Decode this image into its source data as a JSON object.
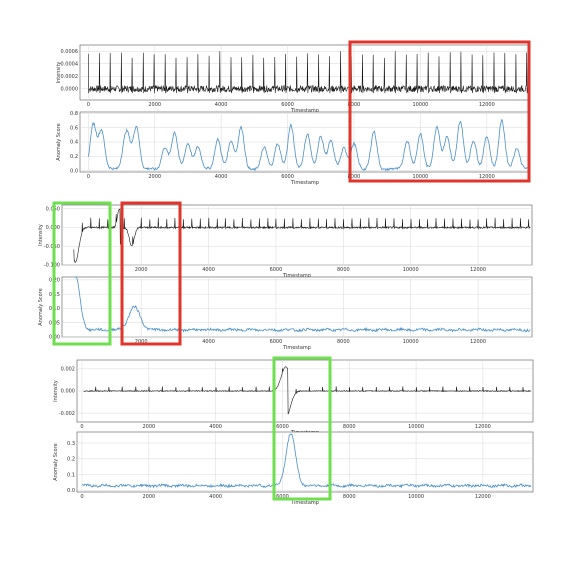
{
  "colors": {
    "signal": "#1a1a1a",
    "score": "#4a90c8",
    "anomaly_box": "#e0352b",
    "detected_box": "#6ee04f",
    "grid": "#d8d8d8"
  },
  "chart_data": [
    {
      "type": "line",
      "panel": "1-signal",
      "xlabel": "Timestamp",
      "ylabel": "Intensity",
      "xlim": [
        -250,
        13300
      ],
      "ylim": [
        -0.00018,
        0.0007
      ],
      "xticks": [
        0,
        2000,
        4000,
        6000,
        8000,
        10000,
        12000
      ],
      "yticks": [
        0.0,
        0.0002,
        0.0004,
        0.0006
      ],
      "ytick_labels": [
        "0.0000",
        "0.0002",
        "0.0004",
        "0.0006"
      ],
      "grid": true,
      "series": [
        {
          "kind": "periodic-spikes",
          "period": 330,
          "baseline": 0.0,
          "peak": 0.00058
        }
      ]
    },
    {
      "type": "line",
      "panel": "1-score",
      "xlabel": "Timestamp",
      "ylabel": "Anomaly Score",
      "xlim": [
        -250,
        13300
      ],
      "ylim": [
        -0.02,
        0.82
      ],
      "xticks": [
        0,
        2000,
        4000,
        6000,
        8000,
        10000,
        12000
      ],
      "yticks": [
        0.0,
        0.2,
        0.4,
        0.6,
        0.8
      ],
      "ytick_labels": [
        "0.0",
        "0.2",
        "0.4",
        "0.6",
        "0.8"
      ],
      "grid": true,
      "series": [
        {
          "kind": "score",
          "peaks": [
            {
              "x": 150,
              "h": 0.62
            },
            {
              "x": 400,
              "h": 0.55
            },
            {
              "x": 1100,
              "h": 0.3
            },
            {
              "x": 1200,
              "h": 0.32
            },
            {
              "x": 1450,
              "h": 0.6
            },
            {
              "x": 2300,
              "h": 0.3
            },
            {
              "x": 2600,
              "h": 0.52
            },
            {
              "x": 3000,
              "h": 0.35
            },
            {
              "x": 3300,
              "h": 0.32
            },
            {
              "x": 3900,
              "h": 0.42
            },
            {
              "x": 4300,
              "h": 0.4
            },
            {
              "x": 4600,
              "h": 0.58
            },
            {
              "x": 5300,
              "h": 0.3
            },
            {
              "x": 5700,
              "h": 0.35
            },
            {
              "x": 6100,
              "h": 0.62
            },
            {
              "x": 6600,
              "h": 0.5
            },
            {
              "x": 7000,
              "h": 0.45
            },
            {
              "x": 7300,
              "h": 0.4
            },
            {
              "x": 7700,
              "h": 0.3
            },
            {
              "x": 8000,
              "h": 0.35
            },
            {
              "x": 8600,
              "h": 0.52
            },
            {
              "x": 9600,
              "h": 0.4
            },
            {
              "x": 10000,
              "h": 0.5
            },
            {
              "x": 10500,
              "h": 0.6
            },
            {
              "x": 10800,
              "h": 0.45
            },
            {
              "x": 11200,
              "h": 0.68
            },
            {
              "x": 11600,
              "h": 0.4
            },
            {
              "x": 12000,
              "h": 0.45
            },
            {
              "x": 12450,
              "h": 0.68
            },
            {
              "x": 12900,
              "h": 0.3
            }
          ]
        }
      ]
    },
    {
      "type": "line",
      "panel": "2-signal",
      "xlabel": "Timestamp",
      "ylabel": "Intensity",
      "xlim": [
        -350,
        13600
      ],
      "ylim": [
        -0.1,
        0.06
      ],
      "xticks": [
        2000,
        4000,
        6000,
        8000,
        10000,
        12000
      ],
      "yticks": [
        -0.1,
        -0.05,
        0.0,
        0.05
      ],
      "ytick_labels": [
        "-0.100",
        "-0.050",
        "0.000",
        "0.050"
      ],
      "grid": true,
      "series": [
        {
          "kind": "periodic-spikes",
          "period": 250,
          "baseline": 0.0,
          "peak": 0.025,
          "events": [
            {
              "x": 50,
              "depth": -0.092,
              "width": 220
            },
            {
              "x": 1350,
              "depth": 0.05,
              "width": 120
            },
            {
              "x": 1720,
              "depth": -0.05,
              "width": 160
            }
          ]
        }
      ]
    },
    {
      "type": "line",
      "panel": "2-score",
      "xlabel": "Timestamp",
      "ylabel": "Anomaly Score",
      "xlim": [
        -350,
        13600
      ],
      "ylim": [
        0.0,
        0.21
      ],
      "xticks": [
        2000,
        4000,
        6000,
        8000,
        10000,
        12000
      ],
      "yticks": [
        0.0,
        0.05,
        0.1,
        0.15,
        0.2
      ],
      "ytick_labels": [
        "0.00",
        "0.05",
        "0.10",
        "0.15",
        "0.20"
      ],
      "grid": true,
      "series": [
        {
          "kind": "score",
          "base": 0.025,
          "peaks": [
            {
              "x": 30,
              "h": 0.2,
              "w": 200
            },
            {
              "x": 1800,
              "h": 0.08,
              "w": 240
            }
          ]
        }
      ]
    },
    {
      "type": "line",
      "panel": "3-signal",
      "xlabel": "Timestamp",
      "ylabel": "Intensity",
      "xlim": [
        -150,
        13500
      ],
      "ylim": [
        -0.0028,
        0.0028
      ],
      "xticks": [
        0,
        2000,
        4000,
        6000,
        8000,
        10000,
        12000
      ],
      "yticks": [
        -0.002,
        0.0,
        0.002
      ],
      "ytick_labels": [
        "-0.002",
        "0.000",
        "0.002"
      ],
      "grid": true,
      "series": [
        {
          "kind": "periodic-spikes",
          "period": 400,
          "baseline": 0.0,
          "peak": 0.0004,
          "events": [
            {
              "x": 6100,
              "depth": 0.0022,
              "width": 300
            }
          ]
        }
      ]
    },
    {
      "type": "line",
      "panel": "3-score",
      "xlabel": "Timestamp",
      "ylabel": "Anomaly Score",
      "xlim": [
        -150,
        13500
      ],
      "ylim": [
        -0.01,
        0.37
      ],
      "xticks": [
        0,
        2000,
        4000,
        6000,
        8000,
        10000,
        12000
      ],
      "yticks": [
        0.0,
        0.1,
        0.2,
        0.3
      ],
      "ytick_labels": [
        "0.0",
        "0.1",
        "0.2",
        "0.3"
      ],
      "grid": true,
      "series": [
        {
          "kind": "score",
          "base": 0.03,
          "peaks": [
            {
              "x": 6250,
              "h": 0.33,
              "w": 200
            }
          ]
        }
      ]
    }
  ]
}
